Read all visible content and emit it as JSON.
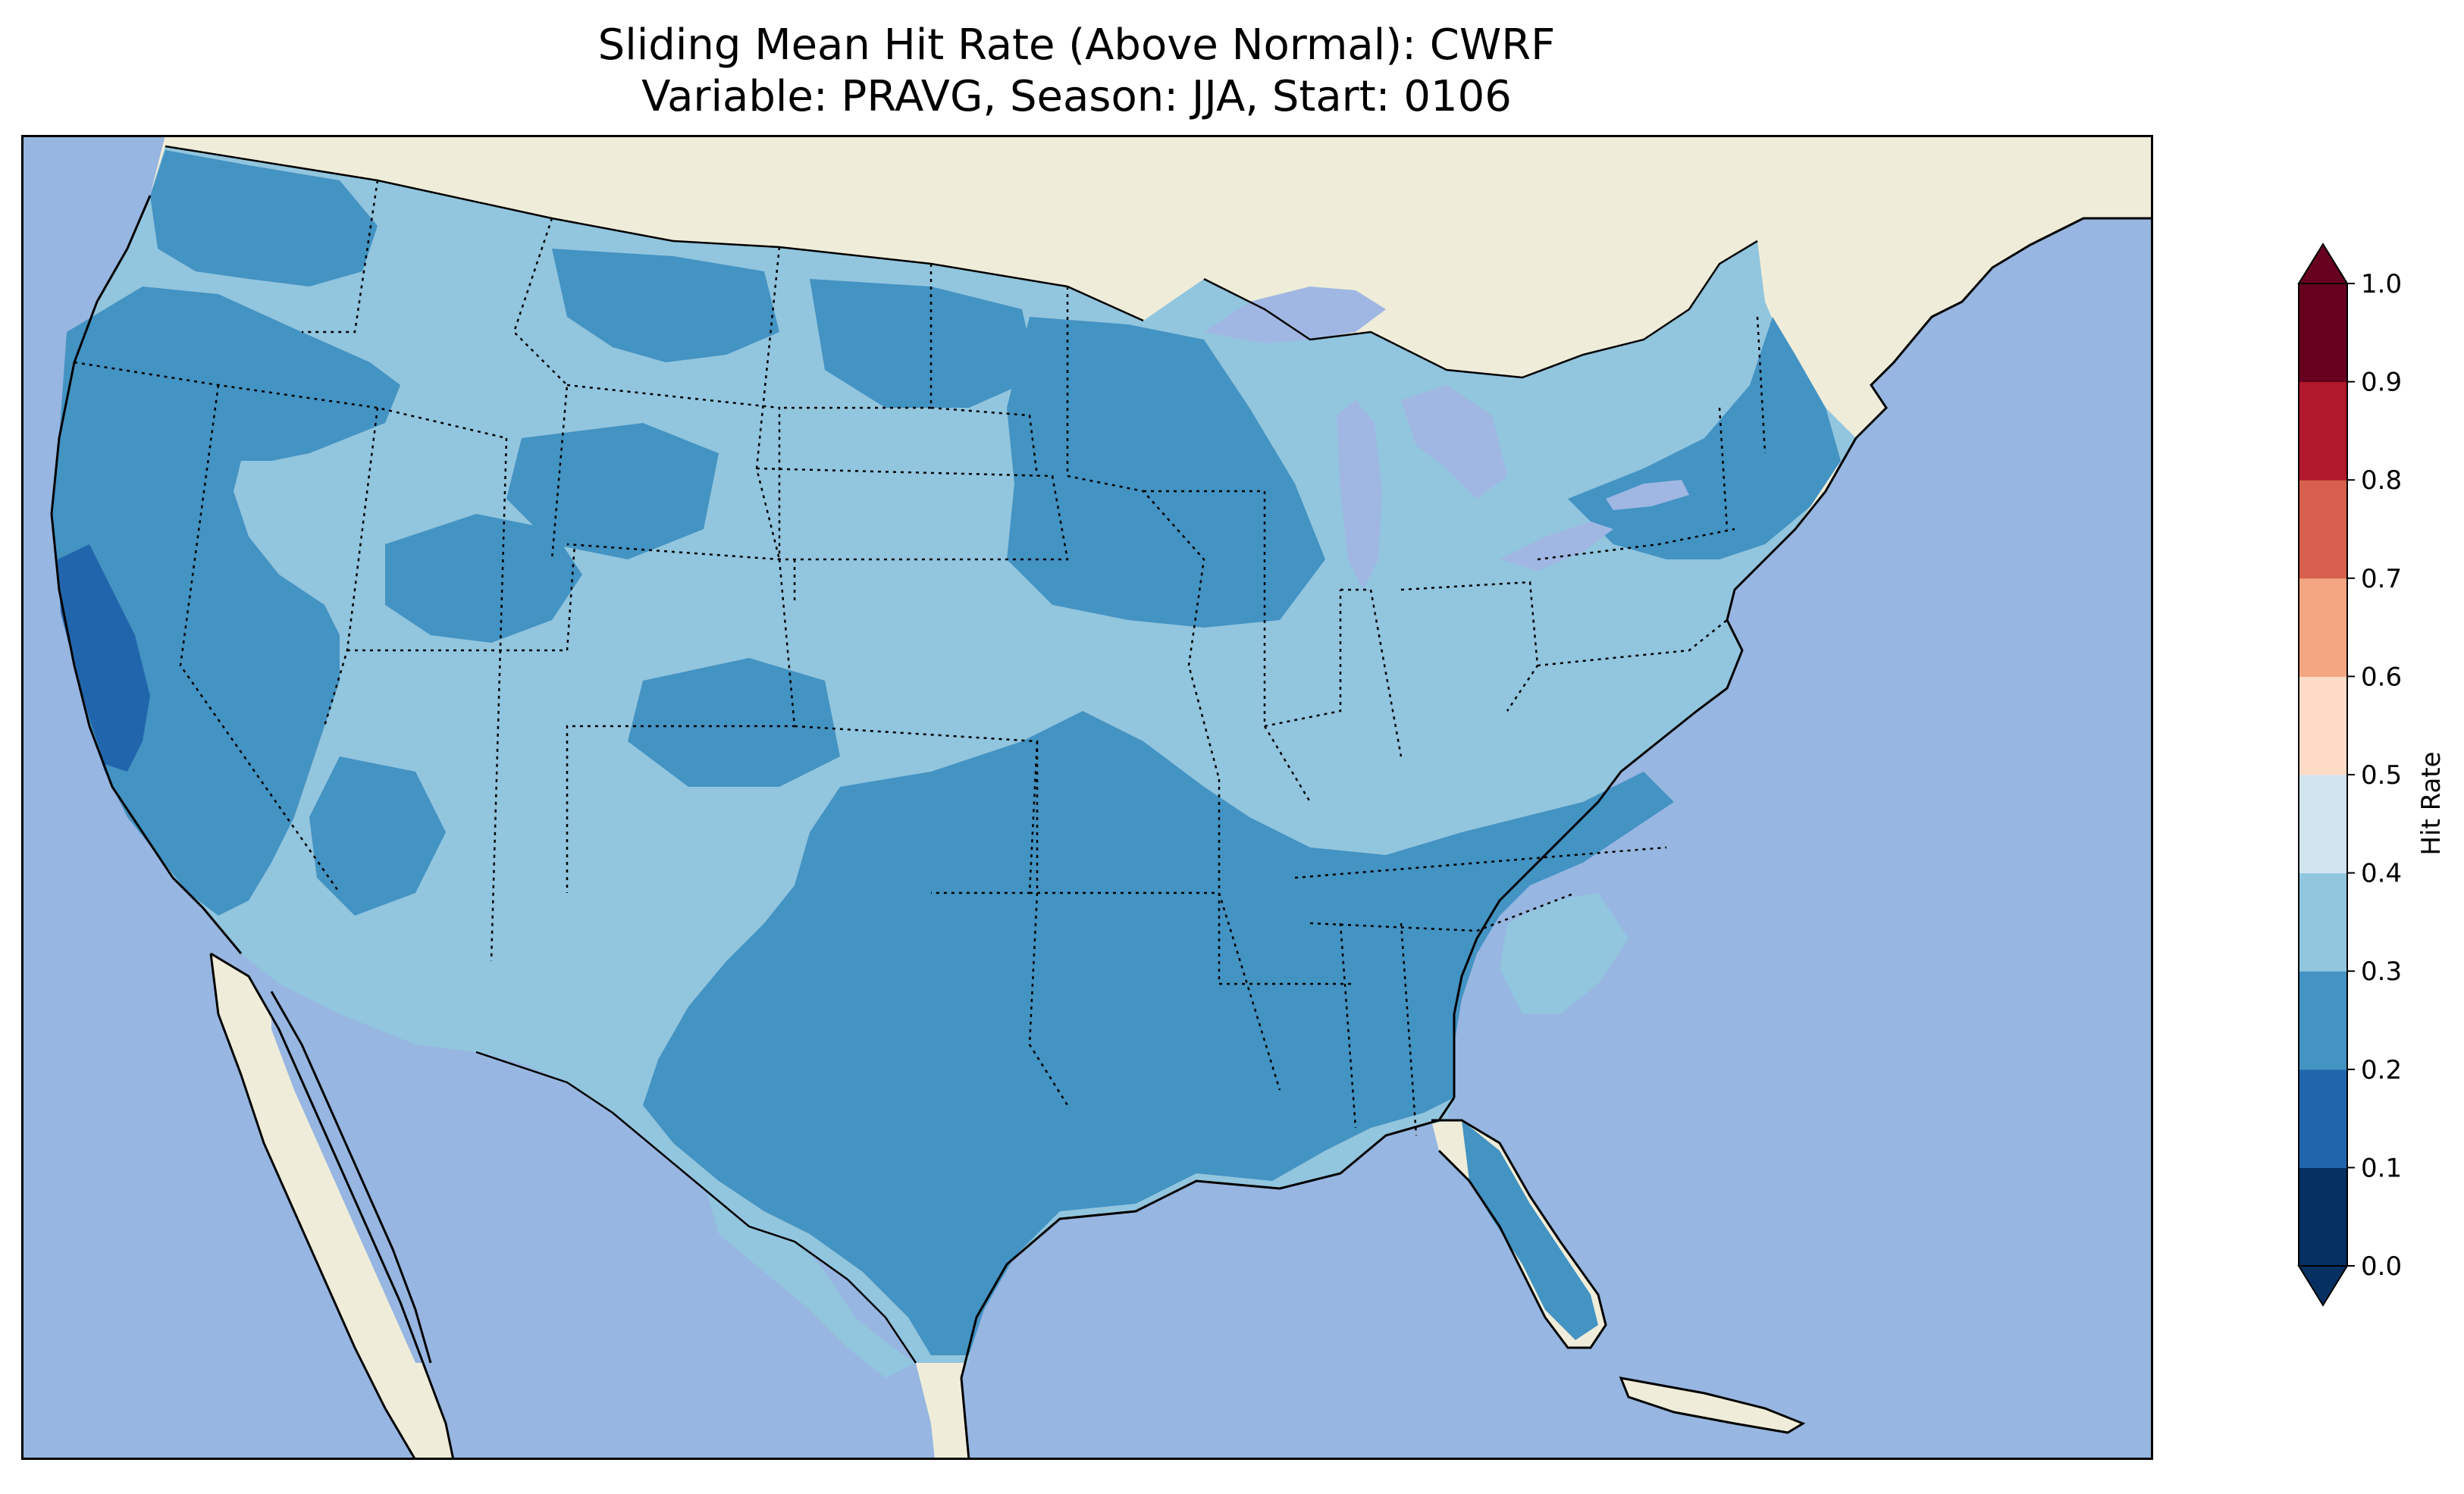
{
  "title": {
    "line1": "Sliding Mean Hit Rate (Above Normal): CWRF",
    "line2": "Variable: PRAVG, Season: JJA, Start: 0106"
  },
  "colors": {
    "ocean": "#97b6e1",
    "land": "#efedd9",
    "lakes": "#a0b7e3"
  },
  "colorbar": {
    "label": "Hit Rate",
    "ticks": [
      "0.0",
      "0.1",
      "0.2",
      "0.3",
      "0.4",
      "0.5",
      "0.6",
      "0.7",
      "0.8",
      "0.9",
      "1.0"
    ],
    "bins": [
      {
        "range": [
          0.0,
          0.1
        ],
        "color": "#053061"
      },
      {
        "range": [
          0.1,
          0.2
        ],
        "color": "#2166ac"
      },
      {
        "range": [
          0.2,
          0.3
        ],
        "color": "#4393c3"
      },
      {
        "range": [
          0.3,
          0.4
        ],
        "color": "#92c5de"
      },
      {
        "range": [
          0.4,
          0.5
        ],
        "color": "#d1e5f0"
      },
      {
        "range": [
          0.5,
          0.6
        ],
        "color": "#fddbc7"
      },
      {
        "range": [
          0.6,
          0.7
        ],
        "color": "#f4a582"
      },
      {
        "range": [
          0.7,
          0.8
        ],
        "color": "#d6604d"
      },
      {
        "range": [
          0.8,
          0.9
        ],
        "color": "#b2182b"
      },
      {
        "range": [
          0.9,
          1.0
        ],
        "color": "#67001f"
      }
    ],
    "extend": "both"
  },
  "map": {
    "projection": "Lambert Conformal (CONUS)",
    "features": [
      "coastlines",
      "state boundaries",
      "country borders",
      "lakes"
    ],
    "field_summary": "Hit rate mostly 0.2-0.4 across contiguous US; 0.1-0.2 patch in central California"
  }
}
